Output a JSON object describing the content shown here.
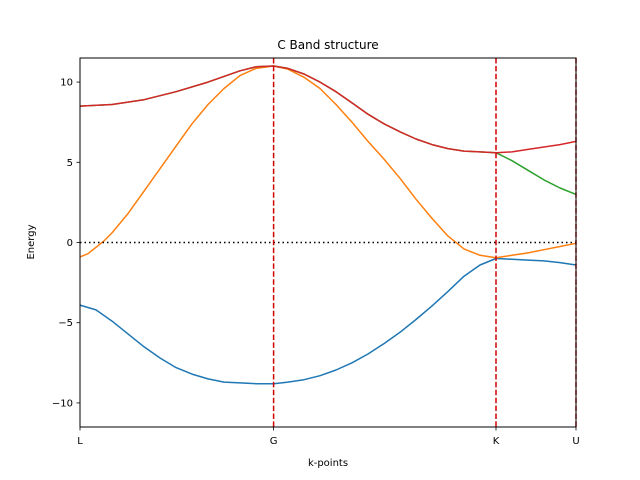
{
  "chart_data": {
    "type": "line",
    "title": "C Band structure",
    "xlabel": "k-points",
    "ylabel": "Energy",
    "xlim": [
      0,
      3.1
    ],
    "ylim": [
      -11.5,
      11.5
    ],
    "x_ticks": [
      {
        "label": "L",
        "x": 0.0
      },
      {
        "label": "G",
        "x": 1.21
      },
      {
        "label": "K",
        "x": 2.6
      },
      {
        "label": "U",
        "x": 3.1
      }
    ],
    "y_ticks": [
      {
        "label": "−10",
        "value": -10
      },
      {
        "label": "−5",
        "value": -5
      },
      {
        "label": "0",
        "value": 0
      },
      {
        "label": "5",
        "value": 5
      },
      {
        "label": "10",
        "value": 10
      }
    ],
    "fermi_level": 0,
    "high_symmetry_lines": [
      1.21,
      2.6,
      3.1
    ],
    "colors": {
      "band1": "#1f77b4",
      "band2": "#ff7f0e",
      "band3": "#2ca02c",
      "band4": "#d62728",
      "vlines": "#d00000",
      "fermi": "#000000"
    },
    "series": [
      {
        "color_key": "band1",
        "x": [
          0.0,
          0.1,
          0.2,
          0.3,
          0.4,
          0.5,
          0.6,
          0.7,
          0.8,
          0.9,
          1.0,
          1.1,
          1.21,
          1.3,
          1.4,
          1.5,
          1.6,
          1.7,
          1.8,
          1.9,
          2.0,
          2.1,
          2.2,
          2.3,
          2.4,
          2.5,
          2.6,
          2.7,
          2.8,
          2.9,
          3.0,
          3.1
        ],
        "values": [
          -3.9,
          -4.2,
          -4.9,
          -5.7,
          -6.5,
          -7.2,
          -7.8,
          -8.2,
          -8.5,
          -8.7,
          -8.75,
          -8.8,
          -8.8,
          -8.7,
          -8.55,
          -8.3,
          -7.95,
          -7.5,
          -6.95,
          -6.3,
          -5.6,
          -4.8,
          -3.95,
          -3.05,
          -2.1,
          -1.4,
          -1.0,
          -1.05,
          -1.1,
          -1.15,
          -1.25,
          -1.4
        ]
      },
      {
        "color_key": "band2",
        "x": [
          0.0,
          0.05,
          0.1,
          0.15,
          0.2,
          0.3,
          0.4,
          0.5,
          0.6,
          0.7,
          0.8,
          0.9,
          1.0,
          1.1,
          1.21,
          1.3,
          1.4,
          1.5,
          1.6,
          1.7,
          1.8,
          1.9,
          2.0,
          2.1,
          2.2,
          2.3,
          2.4,
          2.5,
          2.6,
          2.7,
          2.8,
          2.9,
          3.0,
          3.1
        ],
        "values": [
          -0.9,
          -0.7,
          -0.3,
          0.1,
          0.6,
          1.8,
          3.2,
          4.6,
          6.0,
          7.4,
          8.6,
          9.6,
          10.4,
          10.85,
          11.0,
          10.8,
          10.3,
          9.6,
          8.6,
          7.5,
          6.3,
          5.2,
          4.0,
          2.7,
          1.5,
          0.4,
          -0.4,
          -0.8,
          -0.95,
          -0.8,
          -0.65,
          -0.45,
          -0.25,
          -0.05
        ]
      },
      {
        "color_key": "band3",
        "x": [
          0.0,
          0.2,
          0.4,
          0.6,
          0.8,
          1.0,
          1.1,
          1.21,
          1.3,
          1.4,
          1.5,
          1.6,
          1.7,
          1.8,
          1.9,
          2.0,
          2.1,
          2.2,
          2.3,
          2.4,
          2.5,
          2.6,
          2.7,
          2.8,
          2.9,
          3.0,
          3.1
        ],
        "values": [
          8.5,
          8.6,
          8.9,
          9.4,
          10.0,
          10.7,
          10.95,
          11.0,
          10.85,
          10.5,
          10.0,
          9.4,
          8.7,
          8.0,
          7.4,
          6.9,
          6.45,
          6.1,
          5.85,
          5.7,
          5.65,
          5.6,
          5.1,
          4.5,
          3.9,
          3.4,
          3.0
        ]
      },
      {
        "color_key": "band4",
        "x": [
          0.0,
          0.2,
          0.4,
          0.6,
          0.8,
          1.0,
          1.1,
          1.21,
          1.3,
          1.4,
          1.5,
          1.6,
          1.7,
          1.8,
          1.9,
          2.0,
          2.1,
          2.2,
          2.3,
          2.4,
          2.5,
          2.6,
          2.7,
          2.8,
          2.9,
          3.0,
          3.1
        ],
        "values": [
          8.5,
          8.6,
          8.9,
          9.4,
          10.0,
          10.7,
          10.95,
          11.0,
          10.85,
          10.5,
          10.0,
          9.4,
          8.7,
          8.0,
          7.4,
          6.9,
          6.45,
          6.1,
          5.85,
          5.7,
          5.65,
          5.6,
          5.65,
          5.8,
          5.95,
          6.1,
          6.3
        ]
      }
    ]
  }
}
